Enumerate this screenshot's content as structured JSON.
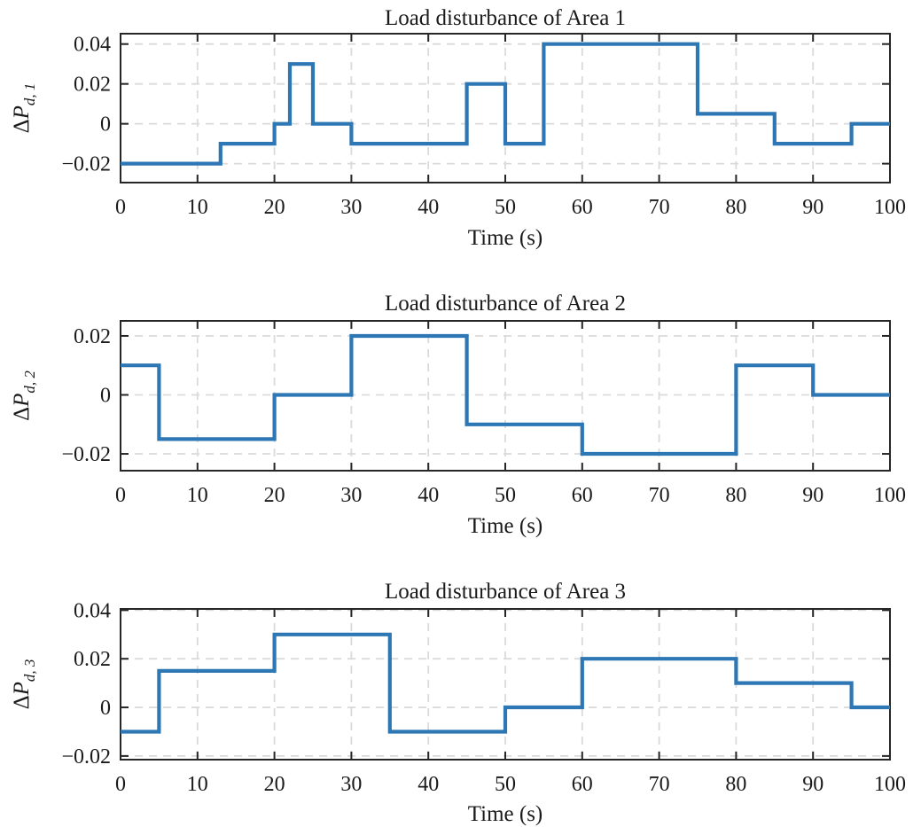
{
  "figure": {
    "background": "#ffffff",
    "line_color": "#2d77b5",
    "axis_color": "#262626",
    "grid_color": "#dadada",
    "text_color": "#1a1a1a"
  },
  "chart_data": [
    {
      "type": "line",
      "subtype": "stairs",
      "title": "Load disturbance of Area 1",
      "xlabel": "Time (s)",
      "ylabel": {
        "prefix": "Δ",
        "symbol": "P",
        "subscript": "d, 1"
      },
      "xlim": [
        0,
        100
      ],
      "ylim": [
        -0.0295,
        0.0452
      ],
      "grid": true,
      "legend": null,
      "xtick_values": [
        0,
        10,
        20,
        30,
        40,
        50,
        60,
        70,
        80,
        90,
        100
      ],
      "xtick_labels": [
        "0",
        "10",
        "20",
        "30",
        "40",
        "50",
        "60",
        "70",
        "80",
        "90",
        "100"
      ],
      "ytick_values": [
        -0.02,
        0,
        0.02,
        0.04
      ],
      "ytick_labels": [
        "−0.02",
        "0",
        "0.02",
        "0.04"
      ],
      "series": [
        {
          "name": "load-disturbance-area-1",
          "step_times": [
            0,
            13,
            20,
            22,
            25,
            30,
            45,
            50,
            55,
            75,
            85,
            95,
            100
          ],
          "step_values": [
            -0.02,
            -0.01,
            0,
            0.03,
            0,
            -0.01,
            0.02,
            -0.01,
            0.04,
            0.005,
            -0.01,
            0
          ]
        }
      ]
    },
    {
      "type": "line",
      "subtype": "stairs",
      "title": "Load disturbance of Area 2",
      "xlabel": "Time (s)",
      "ylabel": {
        "prefix": "Δ",
        "symbol": "P",
        "subscript": "d, 2"
      },
      "xlim": [
        0,
        100
      ],
      "ylim": [
        -0.0257,
        0.0251
      ],
      "grid": true,
      "legend": null,
      "xtick_values": [
        0,
        10,
        20,
        30,
        40,
        50,
        60,
        70,
        80,
        90,
        100
      ],
      "xtick_labels": [
        "0",
        "10",
        "20",
        "30",
        "40",
        "50",
        "60",
        "70",
        "80",
        "90",
        "100"
      ],
      "ytick_values": [
        -0.02,
        0,
        0.02
      ],
      "ytick_labels": [
        "−0.02",
        "0",
        "0.02"
      ],
      "series": [
        {
          "name": "load-disturbance-area-2",
          "step_times": [
            0,
            5,
            20,
            30,
            45,
            60,
            80,
            90,
            100
          ],
          "step_values": [
            0.01,
            -0.015,
            0,
            0.02,
            -0.01,
            -0.02,
            0.01,
            0
          ]
        }
      ]
    },
    {
      "type": "line",
      "subtype": "stairs",
      "title": "Load disturbance of Area 3",
      "xlabel": "Time (s)",
      "ylabel": {
        "prefix": "Δ",
        "symbol": "P",
        "subscript": "d, 3"
      },
      "xlim": [
        0,
        100
      ],
      "ylim": [
        -0.0215,
        0.0405
      ],
      "grid": true,
      "legend": null,
      "xtick_values": [
        0,
        10,
        20,
        30,
        40,
        50,
        60,
        70,
        80,
        90,
        100
      ],
      "xtick_labels": [
        "0",
        "10",
        "20",
        "30",
        "40",
        "50",
        "60",
        "70",
        "80",
        "90",
        "100"
      ],
      "ytick_values": [
        -0.02,
        0,
        0.02,
        0.04
      ],
      "ytick_labels": [
        "−0.02",
        "0",
        "0.02",
        "0.04"
      ],
      "series": [
        {
          "name": "load-disturbance-area-3",
          "step_times": [
            0,
            5,
            20,
            35,
            50,
            60,
            80,
            95,
            100
          ],
          "step_values": [
            -0.01,
            0.015,
            0.03,
            -0.01,
            0,
            0.02,
            0.01,
            0
          ]
        }
      ]
    }
  ]
}
